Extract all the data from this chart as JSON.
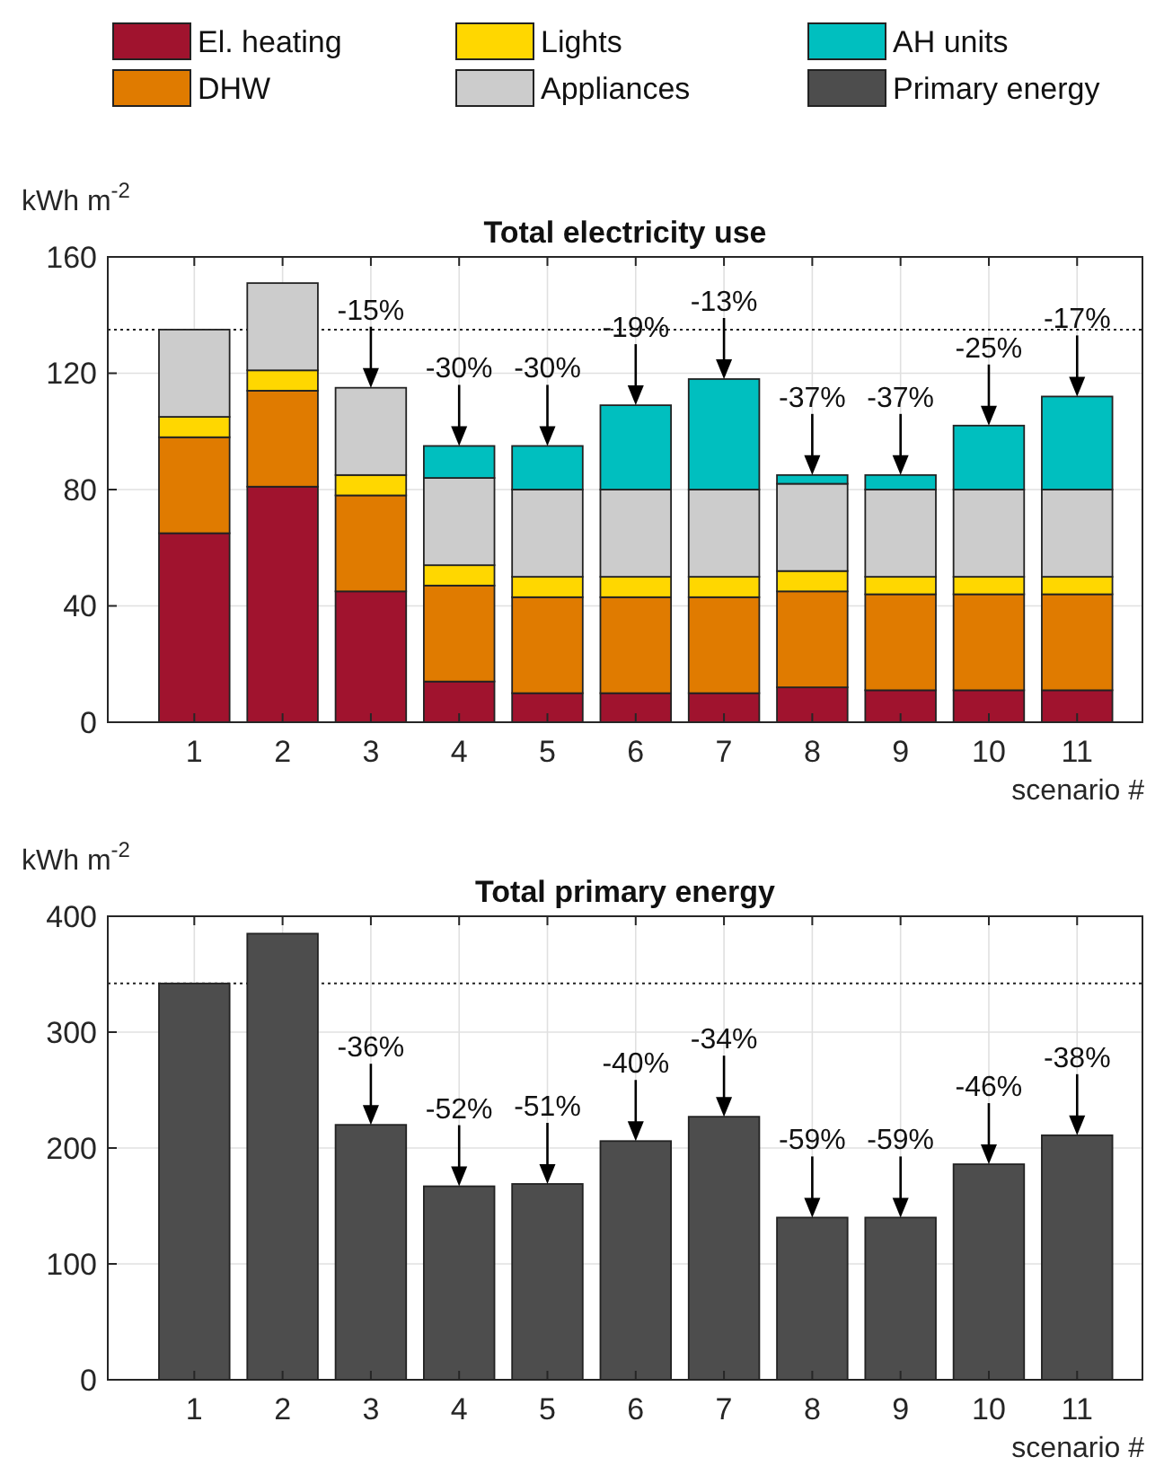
{
  "chart_data": [
    {
      "type": "bar",
      "title": "Total electricity use",
      "xlabel": "scenario #",
      "ylabel": "kWh m$^{-2}$",
      "categories": [
        "1",
        "2",
        "3",
        "4",
        "5",
        "6",
        "7",
        "8",
        "9",
        "10",
        "11"
      ],
      "stacked": true,
      "series": [
        {
          "name": "El. heating",
          "color": "#a0132e",
          "values": [
            65,
            81,
            45,
            14,
            10,
            10,
            10,
            12,
            11,
            11,
            11
          ]
        },
        {
          "name": "DHW",
          "color": "#e07b00",
          "values": [
            33,
            33,
            33,
            33,
            33,
            33,
            33,
            33,
            33,
            33,
            33
          ]
        },
        {
          "name": "Lights",
          "color": "#ffd700",
          "values": [
            7,
            7,
            7,
            7,
            7,
            7,
            7,
            7,
            6,
            6,
            6
          ]
        },
        {
          "name": "Appliances",
          "color": "#cccccc",
          "values": [
            30,
            30,
            30,
            30,
            30,
            30,
            30,
            30,
            30,
            30,
            30
          ]
        },
        {
          "name": "AH  units",
          "color": "#00bfbf",
          "values": [
            0,
            0,
            0,
            11,
            15,
            29,
            38,
            3,
            5,
            22,
            32
          ]
        }
      ],
      "ylim": [
        0,
        160
      ],
      "yticks": [
        0,
        40,
        80,
        120,
        160
      ],
      "grid": true,
      "legend": "top",
      "ref_lines": [
        {
          "axis": "y",
          "value": 135,
          "line_style": "dotted"
        }
      ],
      "annotations": [
        {
          "text": "-15%",
          "x": "3",
          "y": 115
        },
        {
          "text": "-30%",
          "x": "4",
          "y": 95
        },
        {
          "text": "-30%",
          "x": "5",
          "y": 95
        },
        {
          "text": "-19%",
          "x": "6",
          "y": 109
        },
        {
          "text": "-13%",
          "x": "7",
          "y": 118
        },
        {
          "text": "-37%",
          "x": "8",
          "y": 85
        },
        {
          "text": "-37%",
          "x": "9",
          "y": 85
        },
        {
          "text": "-25%",
          "x": "10",
          "y": 102
        },
        {
          "text": "-17%",
          "x": "11",
          "y": 112
        }
      ]
    },
    {
      "type": "bar",
      "title": "Total primary energy",
      "xlabel": "scenario #",
      "ylabel": "kWh m$^{-2}$",
      "categories": [
        "1",
        "2",
        "3",
        "4",
        "5",
        "6",
        "7",
        "8",
        "9",
        "10",
        "11"
      ],
      "series": [
        {
          "name": "Primary energy",
          "color": "#4d4d4d",
          "values": [
            342,
            385,
            220,
            167,
            169,
            206,
            227,
            140,
            140,
            186,
            211
          ]
        }
      ],
      "ylim": [
        0,
        400
      ],
      "yticks": [
        0,
        100,
        200,
        300,
        400
      ],
      "grid": true,
      "legend": "top",
      "ref_lines": [
        {
          "axis": "y",
          "value": 342,
          "line_style": "dotted"
        }
      ],
      "annotations": [
        {
          "text": "-36%",
          "x": "3",
          "y": 220
        },
        {
          "text": "-52%",
          "x": "4",
          "y": 167
        },
        {
          "text": "-51%",
          "x": "5",
          "y": 169
        },
        {
          "text": "-40%",
          "x": "6",
          "y": 206
        },
        {
          "text": "-34%",
          "x": "7",
          "y": 227
        },
        {
          "text": "-59%",
          "x": "8",
          "y": 140
        },
        {
          "text": "-59%",
          "x": "9",
          "y": 140
        },
        {
          "text": "-46%",
          "x": "10",
          "y": 186
        },
        {
          "text": "-38%",
          "x": "11",
          "y": 211
        }
      ]
    }
  ]
}
